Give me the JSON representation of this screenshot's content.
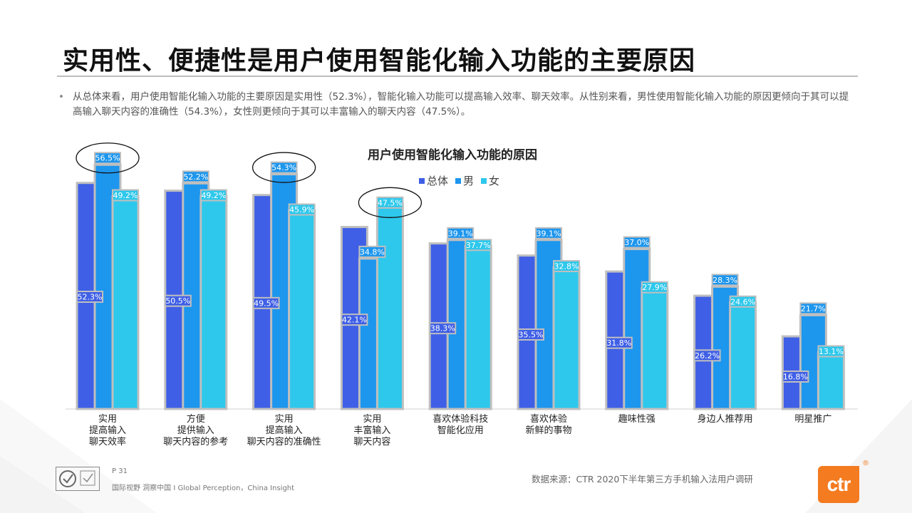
{
  "header": {
    "title": "实用性、便捷性是用户使用智能化输入功能的主要原因",
    "bullet_mark": "•",
    "bullet_text": "从总体来看，用户使用智能化输入功能的主要原因是实用性（52.3%），智能化输入功能可以提高输入效率、聊天效率。从性别来看，男性使用智能化输入功能的原因更倾向于其可以提高输入聊天内容的准确性（54.3%），女性则更倾向于其可以丰富输入的聊天内容（47.5%）。"
  },
  "chart_data": {
    "type": "bar",
    "title": "用户使用智能化输入功能的原因",
    "legend_position": "top-center",
    "grid": false,
    "ylim": [
      0,
      60
    ],
    "categories": [
      [
        "实用",
        "提高输入",
        "聊天效率"
      ],
      [
        "方便",
        "提供输入",
        "聊天内容的参考"
      ],
      [
        "实用",
        "提高输入",
        "聊天内容的准确性"
      ],
      [
        "实用",
        "丰富输入",
        "聊天内容"
      ],
      [
        "喜欢体验科技",
        "智能化应用"
      ],
      [
        "喜欢体验",
        "新鲜的事物"
      ],
      [
        "趣味性强"
      ],
      [
        "身边人推荐用"
      ],
      [
        "明星推广"
      ]
    ],
    "series": [
      {
        "name": "总体",
        "color": "#3f5fe6",
        "values": [
          52.3,
          50.5,
          49.5,
          42.1,
          38.3,
          35.5,
          31.8,
          26.2,
          16.8
        ]
      },
      {
        "name": "男",
        "color": "#1d96ee",
        "values": [
          56.5,
          52.2,
          54.3,
          34.8,
          39.1,
          39.1,
          37.0,
          28.3,
          21.7
        ]
      },
      {
        "name": "女",
        "color": "#2ec8ec",
        "values": [
          49.2,
          49.2,
          45.9,
          47.5,
          37.7,
          32.8,
          27.9,
          24.6,
          13.1
        ]
      }
    ],
    "highlighted": [
      {
        "category_index": 0,
        "series_index": 1
      },
      {
        "category_index": 2,
        "series_index": 1
      },
      {
        "category_index": 3,
        "series_index": 2
      }
    ]
  },
  "footer": {
    "page": "P 31",
    "tagline": "国际视野  洞察中国 I  Global Perception，China Insight",
    "source": "数据来源：CTR 2020下半年第三方手机输入法用户调研",
    "logo_text": "ctr",
    "logo_mark": "®"
  }
}
